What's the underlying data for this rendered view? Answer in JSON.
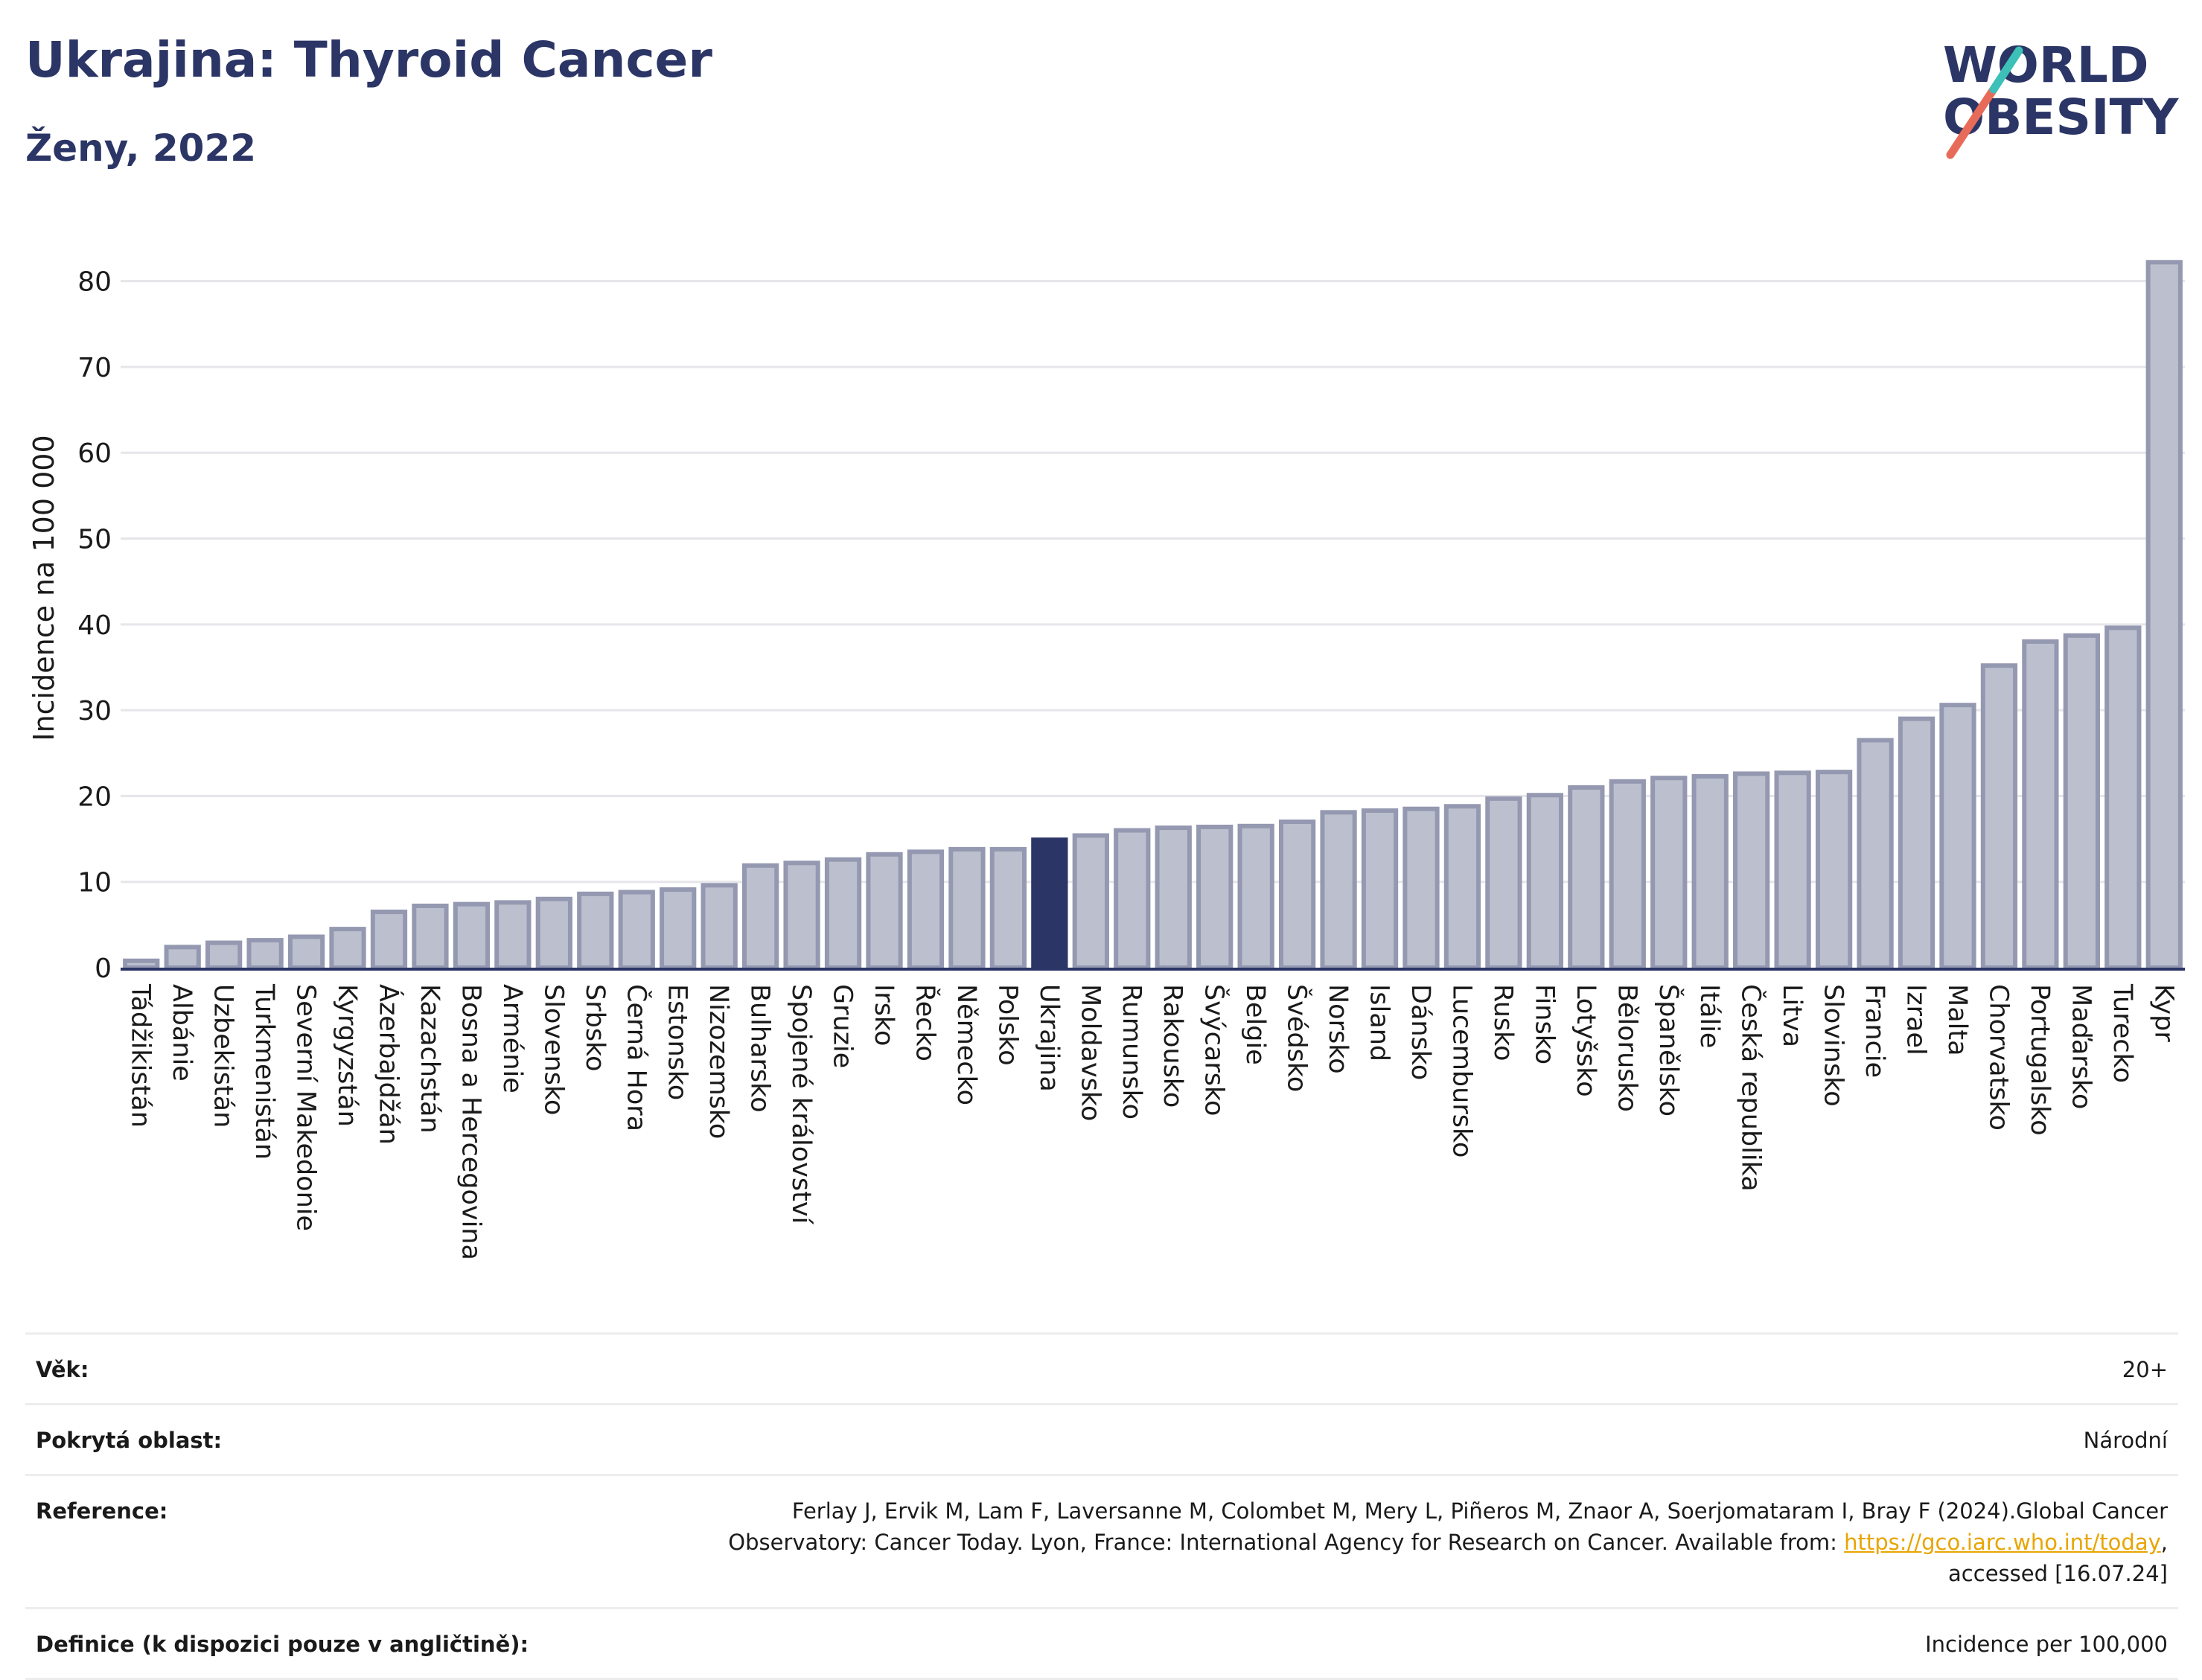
{
  "header": {
    "title": "Ukrajina: Thyroid Cancer",
    "subtitle": "Ženy, 2022"
  },
  "logo": {
    "line1": "WORLD",
    "line2": "OBESITY",
    "colors": {
      "text": "#2b3566",
      "slash_red": "#e86b5a",
      "slash_teal": "#3cc0b8"
    }
  },
  "colors": {
    "bar_fill": "#bcc0ce",
    "bar_stroke": "#9498b0",
    "highlight_fill": "#2b3566",
    "grid": "#e6e6ea",
    "axis": "#2b3566",
    "text": "#1a1a1a"
  },
  "chart_data": {
    "type": "bar",
    "title": "Ukrajina: Thyroid Cancer",
    "subtitle": "Ženy, 2022",
    "ylabel": "Incidence na 100 000",
    "ylim": [
      0,
      85
    ],
    "yticks": [
      0,
      10,
      20,
      30,
      40,
      50,
      60,
      70,
      80
    ],
    "grid": true,
    "highlight": "Ukrajina",
    "categories": [
      "Tádžikistán",
      "Albánie",
      "Uzbekistán",
      "Turkmenistán",
      "Severní Makedonie",
      "Kyrgyzstán",
      "Ázerbajdžán",
      "Kazachstán",
      "Bosna a Hercegovina",
      "Arménie",
      "Slovensko",
      "Srbsko",
      "Černá Hora",
      "Estonsko",
      "Nizozemsko",
      "Bulharsko",
      "Spojené království",
      "Gruzie",
      "Irsko",
      "Řecko",
      "Německo",
      "Polsko",
      "Ukrajina",
      "Moldavsko",
      "Rumunsko",
      "Rakousko",
      "Švýcarsko",
      "Belgie",
      "Švédsko",
      "Norsko",
      "Island",
      "Dánsko",
      "Lucembursko",
      "Rusko",
      "Finsko",
      "Lotyšsko",
      "Bělorusko",
      "Španělsko",
      "Itálie",
      "Česká republika",
      "Litva",
      "Slovinsko",
      "Francie",
      "Izrael",
      "Malta",
      "Chorvatsko",
      "Portugalsko",
      "Maďarsko",
      "Turecko",
      "Kypr"
    ],
    "values": [
      0.8,
      2.4,
      2.9,
      3.2,
      3.6,
      4.5,
      6.5,
      7.2,
      7.4,
      7.6,
      8.0,
      8.6,
      8.8,
      9.1,
      9.6,
      11.9,
      12.2,
      12.6,
      13.2,
      13.5,
      13.8,
      13.8,
      14.9,
      15.4,
      16.0,
      16.3,
      16.4,
      16.5,
      17.0,
      18.1,
      18.3,
      18.5,
      18.8,
      19.7,
      20.1,
      21.0,
      21.7,
      22.1,
      22.3,
      22.6,
      22.7,
      22.8,
      26.5,
      29.0,
      30.6,
      35.2,
      38.0,
      38.7,
      39.6,
      82.2
    ]
  },
  "meta": {
    "rows": [
      {
        "label": "Věk:",
        "value": "20+"
      },
      {
        "label": "Pokrytá oblast:",
        "value": "Národní"
      },
      {
        "label": "Reference:",
        "value_pre": "Ferlay J, Ervik M, Lam F, Laversanne M, Colombet M, Mery L, Piñeros M, Znaor A, Soerjomataram I, Bray F (2024).Global Cancer Observatory: Cancer Today. Lyon, France: International Agency for Research on Cancer. Available from: ",
        "link": "https://gco.iarc.who.int/today",
        "value_post": ", accessed [16.07.24]"
      },
      {
        "label": "Definice (k dispozici pouze v angličtině):",
        "value": "Incidence per 100,000"
      }
    ]
  }
}
